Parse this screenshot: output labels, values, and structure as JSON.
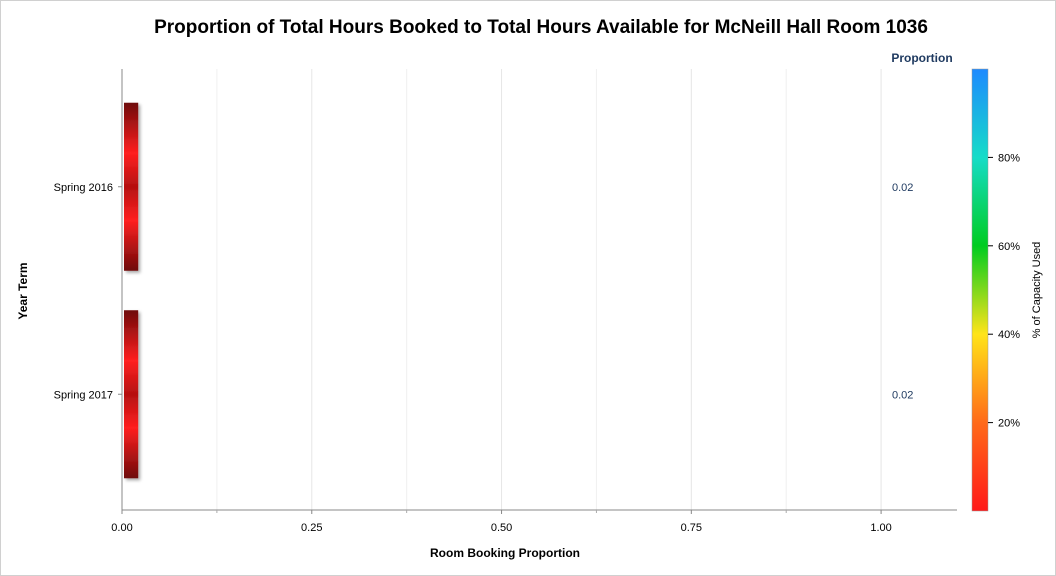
{
  "chart_data": {
    "type": "bar",
    "orientation": "horizontal",
    "title": "Proportion of Total Hours Booked to Total Hours Available for McNeill Hall Room 1036",
    "xlabel": "Room Booking Proportion",
    "ylabel": "Year Term",
    "categories": [
      "Spring 2016",
      "Spring 2017"
    ],
    "values": [
      0.02,
      0.02
    ],
    "value_labels": [
      "0.02",
      "0.02"
    ],
    "value_column_header": "Proportion",
    "xlim": [
      0,
      1.1
    ],
    "x_ticks": [
      0,
      0.25,
      0.5,
      0.75,
      1.0
    ],
    "x_tick_labels": [
      "0.00",
      "0.25",
      "0.50",
      "0.75",
      "1.00"
    ],
    "grid": true,
    "color_legend": {
      "title": "% of Capacity Used",
      "placement": "right",
      "range": [
        0,
        100
      ],
      "ticks": [
        20,
        40,
        60,
        80
      ],
      "tick_labels": [
        "20%",
        "40%",
        "60%",
        "80%"
      ],
      "gradient_colors": [
        "#ff1a1a",
        "#ff6a1a",
        "#ffe41a",
        "#00cc20",
        "#16dcc8",
        "#1e8aff"
      ]
    },
    "bar_colors": {
      "center": "#ff2020",
      "edge": "#6e0a0a"
    }
  }
}
